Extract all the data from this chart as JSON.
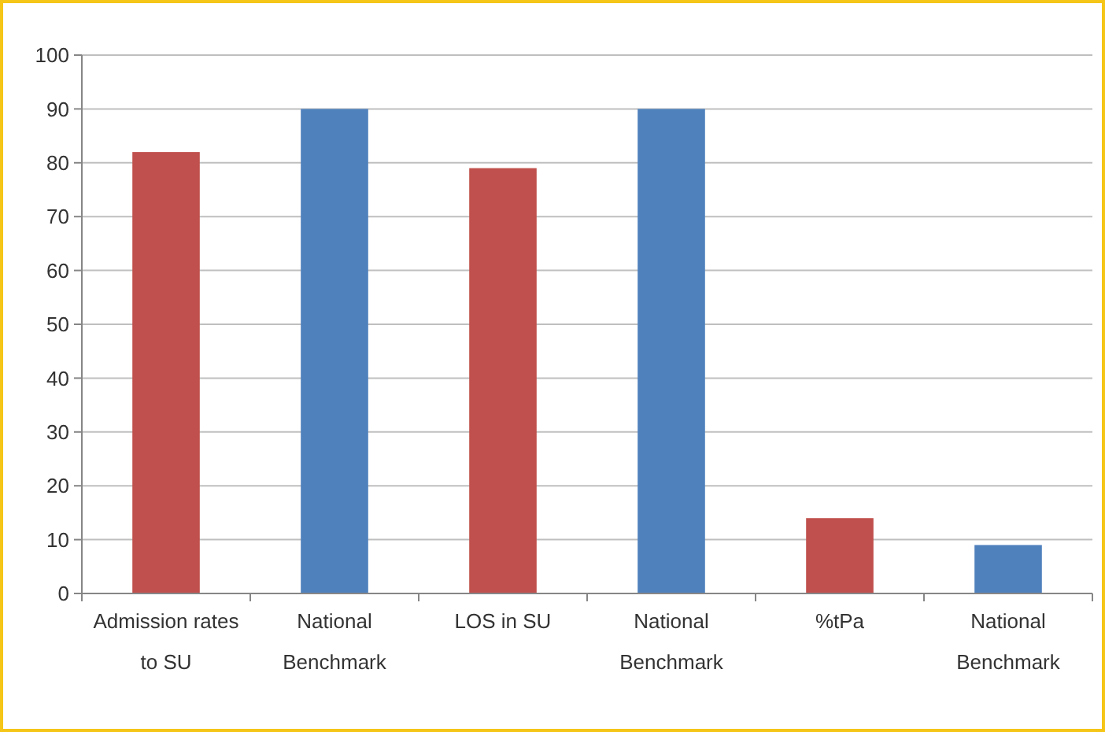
{
  "chart_data": {
    "type": "bar",
    "categories": [
      "Admission rates to SU",
      "National Benchmark",
      "LOS in SU",
      "National Benchmark",
      "%tPa",
      "National Benchmark"
    ],
    "values": [
      82,
      90,
      79,
      90,
      14,
      9
    ],
    "colors": [
      "#c0504d",
      "#4f81bd",
      "#c0504d",
      "#4f81bd",
      "#c0504d",
      "#4f81bd"
    ],
    "ylim": [
      0,
      100
    ],
    "yticks": [
      0,
      10,
      20,
      30,
      40,
      50,
      60,
      70,
      80,
      90,
      100
    ],
    "grid": "y"
  }
}
